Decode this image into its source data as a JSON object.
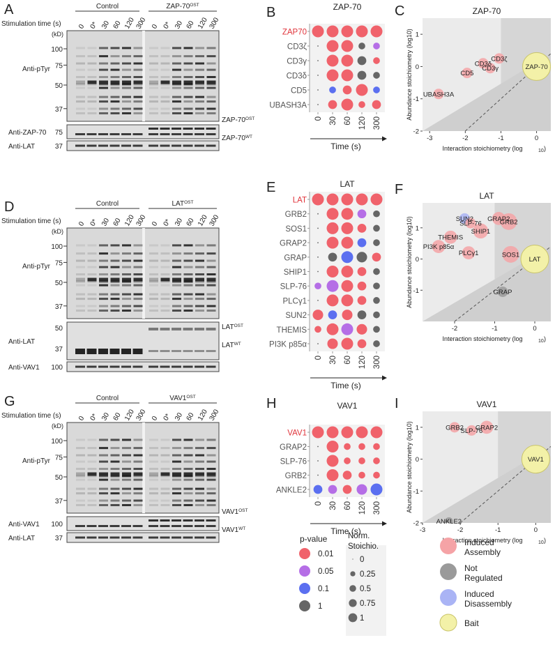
{
  "colors": {
    "p001": "#f0626b",
    "p005": "#b56ee6",
    "p01": "#5b6ff0",
    "p1": "#666666",
    "assembly": "#f5a3a6",
    "notreg": "#9a9a9a",
    "disassembly": "#aab4f5",
    "bait": "#f3f1a8",
    "bait_stroke": "#c9c46a",
    "bait_label": "#e0333a",
    "plotbg_light": "#ebebeb",
    "plotbg_dark": "#d6d6d6"
  },
  "panels": [
    {
      "letter": "A",
      "blot": {
        "groups": [
          "Control",
          "ZAP-70^OST"
        ],
        "stim_label": "Stimulation time (s)",
        "lanes": [
          "0",
          "0*",
          "30",
          "60",
          "120",
          "300"
        ],
        "kd_label": "(kD)",
        "main_label": "Anti-pTyr",
        "mw": [
          "100",
          "75",
          "50",
          "37"
        ],
        "strips": [
          {
            "label": "Anti-ZAP-70",
            "mw": "75",
            "side": [
              "ZAP-70^OST",
              "ZAP-70^WT"
            ]
          },
          {
            "label": "Anti-LAT",
            "mw": "37",
            "side": []
          }
        ]
      },
      "dot_letter": "B",
      "scatter_letter": "C"
    },
    {
      "letter": "D",
      "blot": {
        "groups": [
          "Control",
          "LAT^OST"
        ],
        "stim_label": "Stimulation time (s)",
        "lanes": [
          "0",
          "0*",
          "30",
          "60",
          "120",
          "300"
        ],
        "kd_label": "(kD)",
        "main_label": "Anti-pTyr",
        "mw": [
          "100",
          "75",
          "50",
          "37"
        ],
        "strips": [
          {
            "label": "Anti-LAT",
            "mw": "50|37",
            "side": [
              "LAT^OST",
              "LAT^WT"
            ]
          },
          {
            "label": "Anti-VAV1",
            "mw": "100",
            "side": []
          }
        ]
      },
      "dot_letter": "E",
      "scatter_letter": "F"
    },
    {
      "letter": "G",
      "blot": {
        "groups": [
          "Control",
          "VAV1^OST"
        ],
        "stim_label": "Stimulation time (s)",
        "lanes": [
          "0",
          "0*",
          "30",
          "60",
          "120",
          "300"
        ],
        "kd_label": "(kD)",
        "main_label": "Anti-pTyr",
        "mw": [
          "100",
          "75",
          "50",
          "37"
        ],
        "strips": [
          {
            "label": "Anti-VAV1",
            "mw": "100",
            "side": [
              "VAV1^OST",
              "VAV1^WT"
            ]
          },
          {
            "label": "Anti-LAT",
            "mw": "37",
            "side": []
          }
        ]
      },
      "dot_letter": "H",
      "scatter_letter": "I"
    }
  ],
  "chart_data": [
    {
      "id": "B",
      "type": "scatter",
      "title": "ZAP-70",
      "bait": "ZAP70",
      "proteins": [
        "ZAP70",
        "CD3ζ",
        "CD3γ",
        "CD3δ",
        "CD5",
        "UBASH3A"
      ],
      "x": [
        "0",
        "30",
        "60",
        "120",
        "300"
      ],
      "xlabel": "Time (s)",
      "stoich": [
        [
          1,
          1,
          1,
          1,
          1
        ],
        [
          0,
          1,
          1,
          0.25,
          0.25
        ],
        [
          0,
          1,
          1,
          0.5,
          0.25
        ],
        [
          0,
          1,
          1,
          0.5,
          0.25
        ],
        [
          0,
          0.25,
          0.5,
          1,
          0.25
        ],
        [
          0,
          0.5,
          1,
          0.25,
          0.5
        ]
      ],
      "pval": [
        [
          0.01,
          0.01,
          0.01,
          0.01,
          0.01
        ],
        [
          1,
          0.01,
          0.01,
          1,
          0.05
        ],
        [
          1,
          0.01,
          0.01,
          1,
          0.01
        ],
        [
          1,
          0.01,
          0.01,
          1,
          1
        ],
        [
          1,
          0.1,
          0.01,
          0.01,
          0.1
        ],
        [
          1,
          0.01,
          0.01,
          0.01,
          0.01
        ]
      ]
    },
    {
      "id": "E",
      "type": "scatter",
      "title": "LAT",
      "bait": "LAT",
      "proteins": [
        "LAT",
        "GRB2",
        "SOS1",
        "GRAP2",
        "GRAP",
        "SHIP1",
        "SLP-76",
        "PLCγ1",
        "SUN2",
        "THEMIS",
        "PI3K p85α"
      ],
      "x": [
        "0",
        "30",
        "60",
        "120",
        "300"
      ],
      "xlabel": "Time (s)",
      "stoich": [
        [
          1,
          1,
          1,
          1,
          1
        ],
        [
          0,
          1,
          1,
          0.5,
          0.25
        ],
        [
          0,
          1,
          1,
          0.5,
          0.25
        ],
        [
          0,
          1,
          1,
          0.5,
          0.25
        ],
        [
          0,
          0.5,
          1,
          0.75,
          0.5
        ],
        [
          0,
          1,
          1,
          0.5,
          0.25
        ],
        [
          0.25,
          1,
          1,
          0.5,
          0.25
        ],
        [
          0,
          1,
          1,
          0.5,
          0.25
        ],
        [
          0.75,
          0.5,
          0.75,
          0.5,
          0.25
        ],
        [
          0.25,
          1,
          1,
          0.75,
          0.25
        ],
        [
          0,
          0.75,
          1,
          0.5,
          0.25
        ]
      ],
      "pval": [
        [
          0.01,
          0.01,
          0.01,
          0.01,
          0.01
        ],
        [
          1,
          0.01,
          0.01,
          0.05,
          1
        ],
        [
          1,
          0.01,
          0.01,
          0.01,
          1
        ],
        [
          1,
          0.01,
          0.01,
          0.1,
          1
        ],
        [
          1,
          1,
          0.1,
          1,
          0.01
        ],
        [
          1,
          0.01,
          0.01,
          0.01,
          1
        ],
        [
          0.05,
          0.05,
          0.01,
          0.01,
          1
        ],
        [
          1,
          0.01,
          0.01,
          0.01,
          1
        ],
        [
          0.01,
          0.1,
          0.01,
          1,
          1
        ],
        [
          0.01,
          0.01,
          0.05,
          0.01,
          1
        ],
        [
          1,
          0.01,
          0.01,
          0.01,
          1
        ]
      ]
    },
    {
      "id": "H",
      "type": "scatter",
      "title": "VAV1",
      "bait": "VAV1",
      "proteins": [
        "VAV1",
        "GRAP2",
        "SLP-76",
        "GRB2",
        "ANKLE2"
      ],
      "x": [
        "0",
        "30",
        "60",
        "120",
        "300"
      ],
      "xlabel": "Time (s)",
      "stoich": [
        [
          1,
          1,
          1,
          1,
          1
        ],
        [
          0,
          1,
          0.25,
          0.25,
          0.25
        ],
        [
          0,
          1,
          0.25,
          0.25,
          0.25
        ],
        [
          0,
          1,
          0.5,
          0.25,
          0.25
        ],
        [
          0.5,
          0.5,
          0.5,
          0.75,
          1
        ]
      ],
      "pval": [
        [
          0.01,
          0.01,
          0.01,
          0.01,
          0.01
        ],
        [
          1,
          0.01,
          0.01,
          0.01,
          0.01
        ],
        [
          1,
          0.01,
          0.01,
          0.01,
          0.01
        ],
        [
          1,
          0.01,
          0.01,
          0.01,
          0.01
        ],
        [
          0.1,
          0.05,
          0.01,
          0.05,
          0.1
        ]
      ]
    },
    {
      "id": "C",
      "type": "scatter",
      "title": "ZAP-70",
      "xlabel": "Interaction stoichiometry (log10)",
      "ylabel": "Abundance stoichiometry (log10)",
      "xlim": [
        -3.2,
        0.4
      ],
      "ylim": [
        -2,
        1.5
      ],
      "xticks": [
        -3,
        -2,
        -1,
        0
      ],
      "yticks": [
        -2,
        -1,
        0,
        1
      ],
      "points": [
        {
          "label": "ZAP-70",
          "x": 0,
          "y": 0,
          "size": 1,
          "cls": "bait"
        },
        {
          "label": "CD3ζ",
          "x": -1.05,
          "y": 0.25,
          "size": 0.25,
          "cls": "assembly"
        },
        {
          "label": "CD3δ",
          "x": -1.5,
          "y": 0.1,
          "size": 0.25,
          "cls": "assembly"
        },
        {
          "label": "CD3γ",
          "x": -1.3,
          "y": -0.05,
          "size": 0.25,
          "cls": "assembly"
        },
        {
          "label": "CD5",
          "x": -1.95,
          "y": -0.2,
          "size": 0.25,
          "cls": "assembly"
        },
        {
          "label": "UBASH3A",
          "x": -2.75,
          "y": -0.85,
          "size": 0.25,
          "cls": "assembly"
        }
      ]
    },
    {
      "id": "F",
      "type": "scatter",
      "title": "LAT",
      "xlabel": "Interaction stoichiometry (log10)",
      "ylabel": "Abundance stoichiometry (log10)",
      "xlim": [
        -2.8,
        0.4
      ],
      "ylim": [
        -2,
        1.8
      ],
      "xticks": [
        -2,
        -1,
        0
      ],
      "yticks": [
        -1,
        0,
        1
      ],
      "points": [
        {
          "label": "LAT",
          "x": 0,
          "y": 0,
          "size": 1,
          "cls": "bait"
        },
        {
          "label": "GRAP2",
          "x": -0.9,
          "y": 1.3,
          "size": 0.5,
          "cls": "assembly"
        },
        {
          "label": "GRB2",
          "x": -0.65,
          "y": 1.2,
          "size": 1,
          "cls": "assembly"
        },
        {
          "label": "SUN2",
          "x": -1.75,
          "y": 1.3,
          "size": 0.25,
          "cls": "disassembly"
        },
        {
          "label": "SLP-76",
          "x": -1.6,
          "y": 1.15,
          "size": 0.25,
          "cls": "assembly"
        },
        {
          "label": "SHIP1",
          "x": -1.35,
          "y": 0.9,
          "size": 0.75,
          "cls": "assembly"
        },
        {
          "label": "THEMIS",
          "x": -2.1,
          "y": 0.7,
          "size": 0.5,
          "cls": "assembly"
        },
        {
          "label": "PI3K p85α",
          "x": -2.4,
          "y": 0.4,
          "size": 0.5,
          "cls": "assembly"
        },
        {
          "label": "PLCγ1",
          "x": -1.65,
          "y": 0.2,
          "size": 0.5,
          "cls": "assembly"
        },
        {
          "label": "SOS1",
          "x": -0.6,
          "y": 0.15,
          "size": 1,
          "cls": "assembly"
        },
        {
          "label": "GRAP",
          "x": -0.8,
          "y": -1.05,
          "size": 0.25,
          "cls": "notreg"
        }
      ]
    },
    {
      "id": "I",
      "type": "scatter",
      "title": "VAV1",
      "xlabel": "Interaction stoichiometry (log10)",
      "ylabel": "Abundance stoichiometry (log10)",
      "xlim": [
        -3,
        0.4
      ],
      "ylim": [
        -2,
        1.5
      ],
      "xticks": [
        -3,
        -2,
        -1,
        0
      ],
      "yticks": [
        -2,
        -1,
        0,
        1
      ],
      "points": [
        {
          "label": "VAV1",
          "x": 0,
          "y": 0,
          "size": 1,
          "cls": "bait"
        },
        {
          "label": "GRB2",
          "x": -2.15,
          "y": 1.0,
          "size": 0.25,
          "cls": "assembly"
        },
        {
          "label": "SLP-76",
          "x": -1.7,
          "y": 0.9,
          "size": 0.25,
          "cls": "assembly"
        },
        {
          "label": "GRAP2",
          "x": -1.3,
          "y": 1.0,
          "size": 0.5,
          "cls": "assembly"
        },
        {
          "label": "ANKLE2",
          "x": -2.3,
          "y": -1.95,
          "size": 0.1,
          "cls": "notreg"
        }
      ]
    }
  ],
  "legend_p": {
    "title": "p-value",
    "items": [
      "0.01",
      "0.05",
      "0.1",
      "1"
    ]
  },
  "legend_s": {
    "title": "Norm. Stoichio.",
    "items": [
      "0",
      "0.25",
      "0.5",
      "0.75",
      "1"
    ]
  },
  "legend_c": {
    "items": [
      "Induced Assembly",
      "Not Regulated",
      "Induced Disassembly",
      "Bait"
    ]
  }
}
